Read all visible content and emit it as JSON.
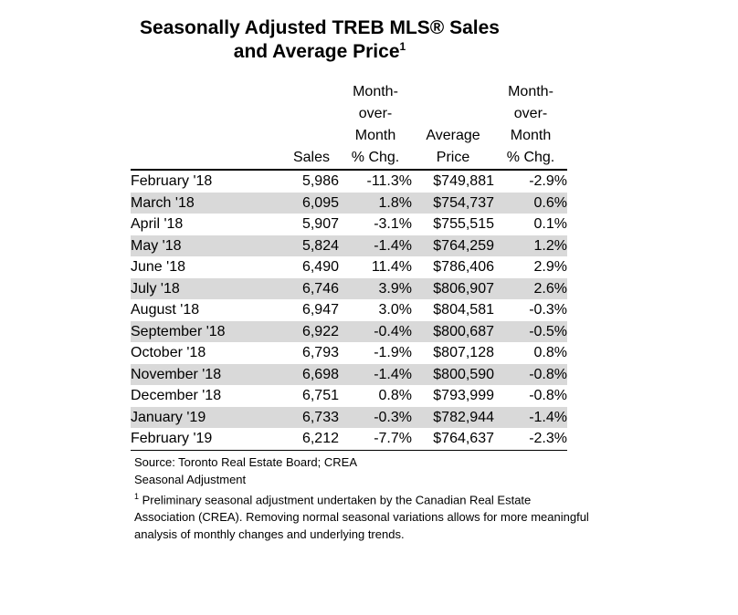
{
  "title": {
    "line1": "Seasonally Adjusted TREB MLS® Sales",
    "line2": "and Average Price",
    "line2_sup": "1"
  },
  "headers": {
    "sales": "Sales",
    "mom_sales": [
      "Month-",
      "over-",
      "Month",
      "% Chg."
    ],
    "price": [
      "Average",
      "Price"
    ],
    "mom_price": [
      "Month-",
      "over-",
      "Month",
      "% Chg."
    ]
  },
  "rows": [
    {
      "month": "February '18",
      "sales": "5,986",
      "sales_chg": "-11.3%",
      "price": "$749,881",
      "price_chg": "-2.9%"
    },
    {
      "month": "March '18",
      "sales": "6,095",
      "sales_chg": "1.8%",
      "price": "$754,737",
      "price_chg": "0.6%"
    },
    {
      "month": "April '18",
      "sales": "5,907",
      "sales_chg": "-3.1%",
      "price": "$755,515",
      "price_chg": "0.1%"
    },
    {
      "month": "May '18",
      "sales": "5,824",
      "sales_chg": "-1.4%",
      "price": "$764,259",
      "price_chg": "1.2%"
    },
    {
      "month": "June '18",
      "sales": "6,490",
      "sales_chg": "11.4%",
      "price": "$786,406",
      "price_chg": "2.9%"
    },
    {
      "month": "July '18",
      "sales": "6,746",
      "sales_chg": "3.9%",
      "price": "$806,907",
      "price_chg": "2.6%"
    },
    {
      "month": "August '18",
      "sales": "6,947",
      "sales_chg": "3.0%",
      "price": "$804,581",
      "price_chg": "-0.3%"
    },
    {
      "month": "September '18",
      "sales": "6,922",
      "sales_chg": "-0.4%",
      "price": "$800,687",
      "price_chg": "-0.5%"
    },
    {
      "month": "October '18",
      "sales": "6,793",
      "sales_chg": "-1.9%",
      "price": "$807,128",
      "price_chg": "0.8%"
    },
    {
      "month": "November '18",
      "sales": "6,698",
      "sales_chg": "-1.4%",
      "price": "$800,590",
      "price_chg": "-0.8%"
    },
    {
      "month": "December '18",
      "sales": "6,751",
      "sales_chg": "0.8%",
      "price": "$793,999",
      "price_chg": "-0.8%"
    },
    {
      "month": "January '19",
      "sales": "6,733",
      "sales_chg": "-0.3%",
      "price": "$782,944",
      "price_chg": "-1.4%"
    },
    {
      "month": "February '19",
      "sales": "6,212",
      "sales_chg": "-7.7%",
      "price": "$764,637",
      "price_chg": "-2.3%"
    }
  ],
  "notes": {
    "source": "Source: Toronto Real Estate Board; CREA",
    "heading": "Seasonal Adjustment",
    "footnote_mark": "1",
    "footnote": " Preliminary seasonal adjustment undertaken by the Canadian Real Estate Association (CREA).  Removing normal seasonal variations allows for more meaningful analysis of monthly changes and underlying trends."
  },
  "colors": {
    "stripe": "#d9d9d9"
  }
}
